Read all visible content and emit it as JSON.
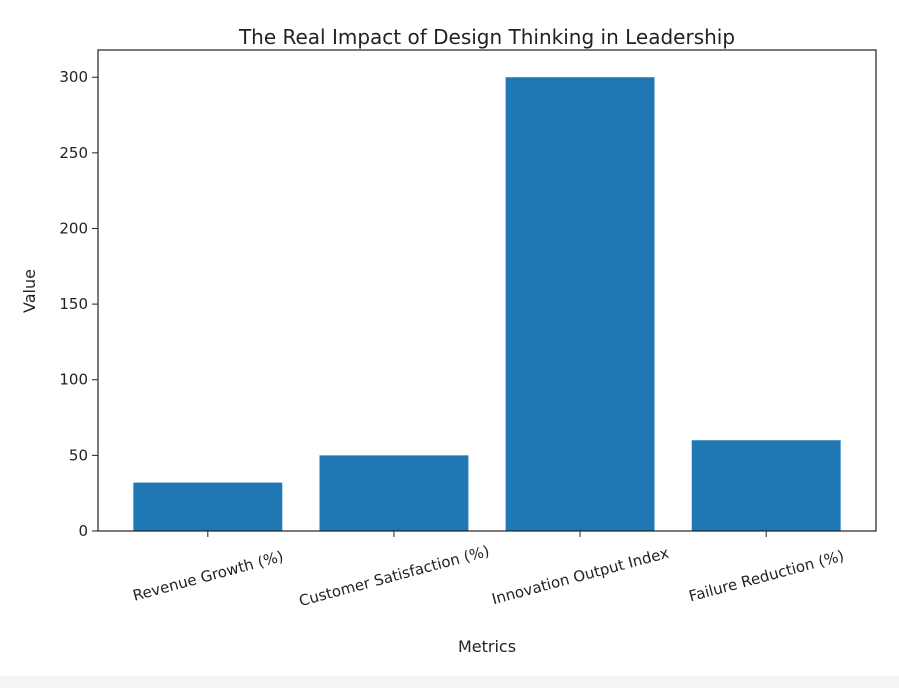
{
  "chart_data": {
    "type": "bar",
    "title": "The Real Impact of Design Thinking in Leadership",
    "xlabel": "Metrics",
    "ylabel": "Value",
    "categories": [
      "Revenue Growth (%)",
      "Customer Satisfaction (%)",
      "Innovation Output Index",
      "Failure Reduction (%)"
    ],
    "values": [
      32,
      50,
      300,
      60
    ],
    "ylim": [
      0,
      318
    ],
    "yticks": [
      0,
      50,
      100,
      150,
      200,
      250,
      300
    ],
    "bar_color": "#1f77b4",
    "grid": false
  }
}
